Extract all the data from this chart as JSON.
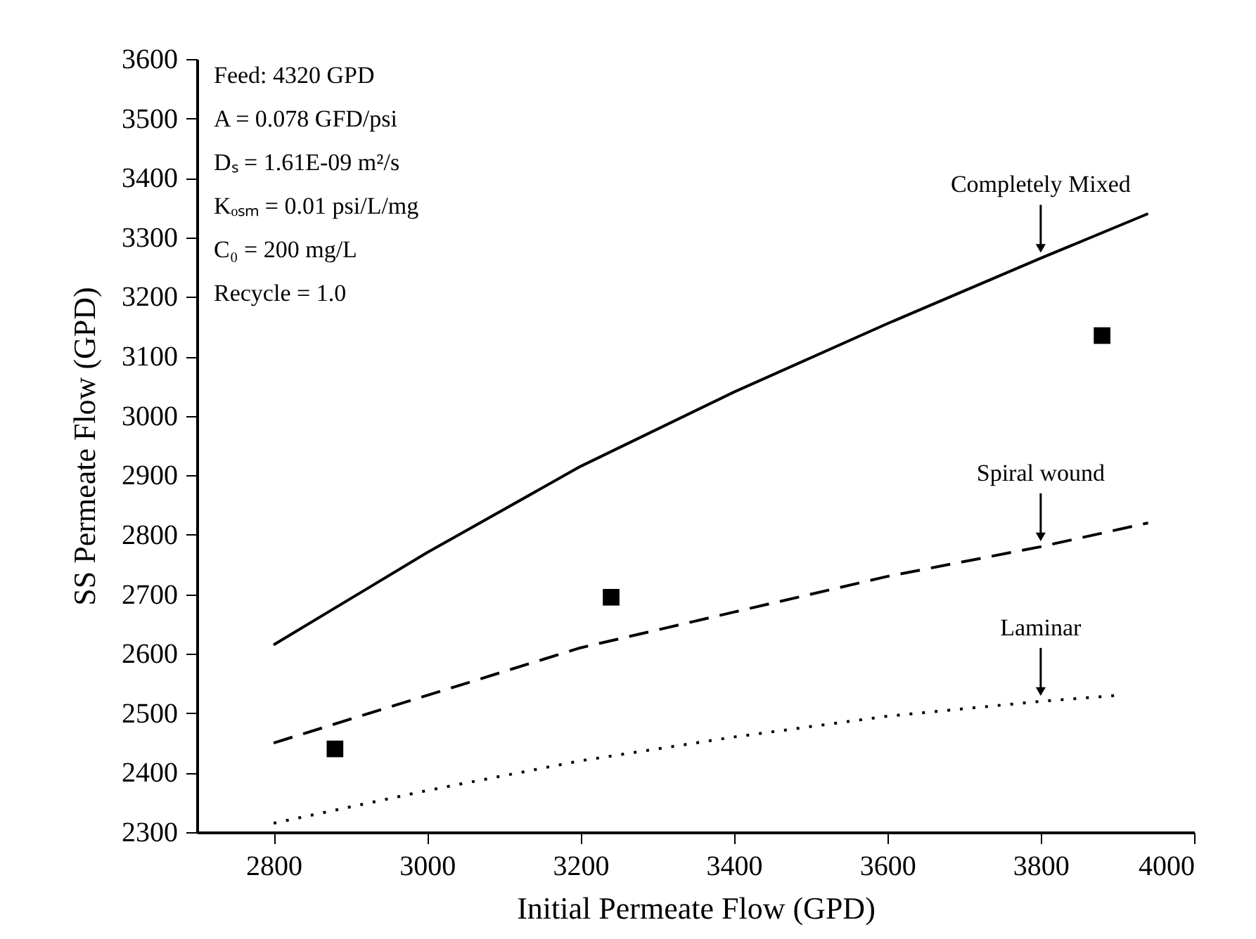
{
  "chart_data": {
    "type": "line",
    "xlabel": "Initial Permeate Flow (GPD)",
    "ylabel": "SS Permeate Flow (GPD)",
    "xlim": [
      2700,
      4000
    ],
    "xticks": [
      2800,
      3000,
      3200,
      3400,
      3600,
      3800,
      4000
    ],
    "ylim": [
      2300,
      3600
    ],
    "yticks": [
      2300,
      2400,
      2500,
      2600,
      2700,
      2800,
      2900,
      3000,
      3100,
      3200,
      3300,
      3400,
      3500,
      3600
    ],
    "grid": false,
    "legend": false,
    "annotations": [
      "Feed: 4320 GPD",
      "A = 0.078 GFD/psi",
      "Dₛ = 1.61E-09 m²/s",
      "Kₒₛₘ = 0.01 psi/L/mg",
      "C₀ = 200 mg/L",
      "Recycle = 1.0"
    ],
    "series": [
      {
        "name": "Completely Mixed",
        "type": "line",
        "line_style": "solid",
        "marker": "none",
        "color": "#000000",
        "x": [
          2800,
          3000,
          3200,
          3400,
          3600,
          3800,
          3940
        ],
        "values": [
          2615,
          2770,
          2915,
          3040,
          3155,
          3265,
          3340
        ]
      },
      {
        "name": "Spiral wound",
        "type": "line",
        "line_style": "dashed",
        "marker": "none",
        "color": "#000000",
        "x": [
          2800,
          3000,
          3200,
          3400,
          3600,
          3800,
          3940
        ],
        "values": [
          2450,
          2530,
          2610,
          2670,
          2730,
          2780,
          2820
        ]
      },
      {
        "name": "Laminar",
        "type": "line",
        "line_style": "dotted",
        "marker": "none",
        "color": "#000000",
        "x": [
          2800,
          3000,
          3200,
          3400,
          3600,
          3800,
          3900
        ],
        "values": [
          2315,
          2370,
          2420,
          2460,
          2495,
          2520,
          2530
        ]
      },
      {
        "type": "scatter",
        "marker": "square",
        "color": "#000000",
        "x": [
          2880,
          3240,
          3880
        ],
        "values": [
          2440,
          2695,
          3135
        ]
      }
    ]
  }
}
